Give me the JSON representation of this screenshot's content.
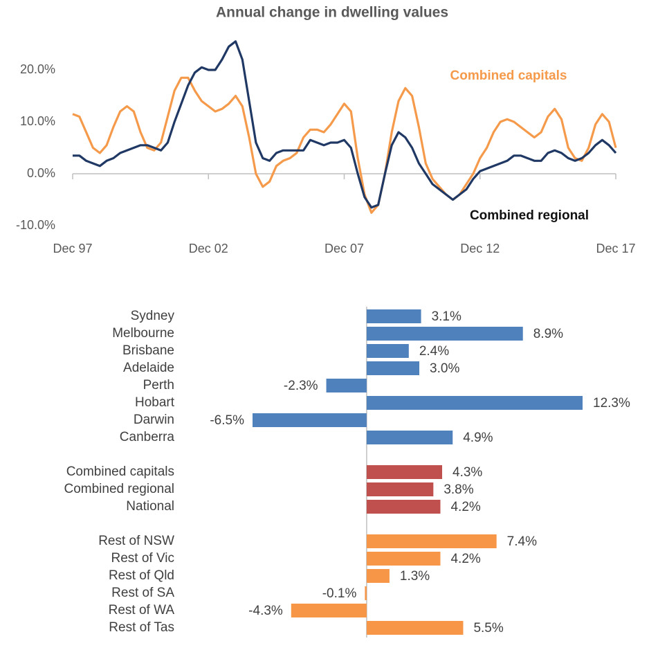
{
  "chart_data": [
    {
      "type": "line",
      "title": "Annual change in dwelling values",
      "x": [
        1997.92,
        1998.17,
        1998.42,
        1998.67,
        1998.92,
        1999.17,
        1999.42,
        1999.67,
        1999.92,
        2000.17,
        2000.42,
        2000.67,
        2000.92,
        2001.17,
        2001.42,
        2001.67,
        2001.92,
        2002.17,
        2002.42,
        2002.67,
        2002.92,
        2003.17,
        2003.42,
        2003.67,
        2003.92,
        2004.17,
        2004.42,
        2004.67,
        2004.92,
        2005.17,
        2005.42,
        2005.67,
        2005.92,
        2006.17,
        2006.42,
        2006.67,
        2006.92,
        2007.17,
        2007.42,
        2007.67,
        2007.92,
        2008.17,
        2008.42,
        2008.67,
        2008.92,
        2009.17,
        2009.42,
        2009.67,
        2009.92,
        2010.17,
        2010.42,
        2010.67,
        2010.92,
        2011.17,
        2011.42,
        2011.67,
        2011.92,
        2012.17,
        2012.42,
        2012.67,
        2012.92,
        2013.17,
        2013.42,
        2013.67,
        2013.92,
        2014.17,
        2014.42,
        2014.67,
        2014.92,
        2015.17,
        2015.42,
        2015.67,
        2015.92,
        2016.17,
        2016.42,
        2016.67,
        2016.92,
        2017.17,
        2017.42,
        2017.67,
        2017.92
      ],
      "series": [
        {
          "name": "Combined capitals",
          "color": "#f59a4b",
          "values": [
            11.5,
            11,
            8,
            5,
            4,
            5.5,
            9,
            12,
            13,
            12,
            8,
            5,
            4.5,
            6,
            11,
            16,
            18.5,
            18.5,
            16,
            14,
            13,
            12,
            12.5,
            13.5,
            15,
            13,
            7,
            0,
            -2.5,
            -1.5,
            1.5,
            2.5,
            3,
            4,
            7,
            8.5,
            8.5,
            8,
            9.5,
            11.5,
            13.5,
            12,
            3,
            -4,
            -7.5,
            -6,
            0,
            8,
            14,
            16.5,
            15,
            9,
            2,
            -1,
            -2.5,
            -4,
            -5,
            -4,
            -2,
            0,
            3,
            5,
            8,
            10,
            10.5,
            10,
            9,
            8,
            7,
            8,
            11,
            12.5,
            10.5,
            5,
            3,
            2.5,
            5,
            9.5,
            11.5,
            10,
            5
          ]
        },
        {
          "name": "Combined regional",
          "color": "#203864",
          "values": [
            3.5,
            3.5,
            2.5,
            2,
            1.5,
            2.5,
            3,
            4,
            4.5,
            5,
            5.5,
            5.5,
            5,
            4.5,
            6,
            10,
            13.5,
            17,
            19.5,
            20.5,
            20,
            20,
            22,
            24.5,
            25.5,
            22,
            14,
            6,
            3,
            2.5,
            4,
            4.5,
            4.5,
            4.5,
            4.5,
            6.5,
            6,
            5.5,
            6,
            6,
            6.5,
            5,
            0,
            -4.5,
            -6.5,
            -6,
            0,
            5.5,
            8,
            7,
            5,
            2,
            0,
            -2,
            -3,
            -4,
            -5,
            -4,
            -3,
            -1,
            0.5,
            1,
            1.5,
            2,
            2.5,
            3.5,
            3.5,
            3,
            2.5,
            2.5,
            4,
            4.5,
            4,
            3,
            2.5,
            3,
            4,
            5.5,
            6.5,
            5.5,
            4
          ]
        }
      ],
      "xlim": [
        1997.92,
        2017.92
      ],
      "xticks": [
        {
          "value": 1997.92,
          "label": "Dec 97"
        },
        {
          "value": 2002.92,
          "label": "Dec 02"
        },
        {
          "value": 2007.92,
          "label": "Dec 07"
        },
        {
          "value": 2012.92,
          "label": "Dec 12"
        },
        {
          "value": 2017.92,
          "label": "Dec 17"
        }
      ],
      "ylim": [
        -10,
        26
      ],
      "yticks": [
        {
          "value": -10,
          "label": "-10.0%"
        },
        {
          "value": 0,
          "label": "0.0%"
        },
        {
          "value": 10,
          "label": "10.0%"
        },
        {
          "value": 20,
          "label": "20.0%"
        }
      ],
      "grid": false
    },
    {
      "type": "bar",
      "orientation": "horizontal",
      "groups": [
        {
          "color": "#4f81bd",
          "categories": [
            "Sydney",
            "Melbourne",
            "Brisbane",
            "Adelaide",
            "Perth",
            "Hobart",
            "Darwin",
            "Canberra"
          ],
          "values": [
            3.1,
            8.9,
            2.4,
            3.0,
            -2.3,
            12.3,
            -6.5,
            4.9
          ],
          "value_labels": [
            "3.1%",
            "8.9%",
            "2.4%",
            "3.0%",
            "-2.3%",
            "12.3%",
            "-6.5%",
            "4.9%"
          ]
        },
        {
          "color": "#c0504d",
          "categories": [
            "Combined capitals",
            "Combined regional",
            "National"
          ],
          "values": [
            4.3,
            3.8,
            4.2
          ],
          "value_labels": [
            "4.3%",
            "3.8%",
            "4.2%"
          ]
        },
        {
          "color": "#f79646",
          "categories": [
            "Rest of NSW",
            "Rest of Vic",
            "Rest of Qld",
            "Rest of SA",
            "Rest of WA",
            "Rest of Tas"
          ],
          "values": [
            7.4,
            4.2,
            1.3,
            -0.1,
            -4.3,
            5.5
          ],
          "value_labels": [
            "7.4%",
            "4.2%",
            "1.3%",
            "-0.1%",
            "-4.3%",
            "5.5%"
          ]
        }
      ]
    }
  ]
}
